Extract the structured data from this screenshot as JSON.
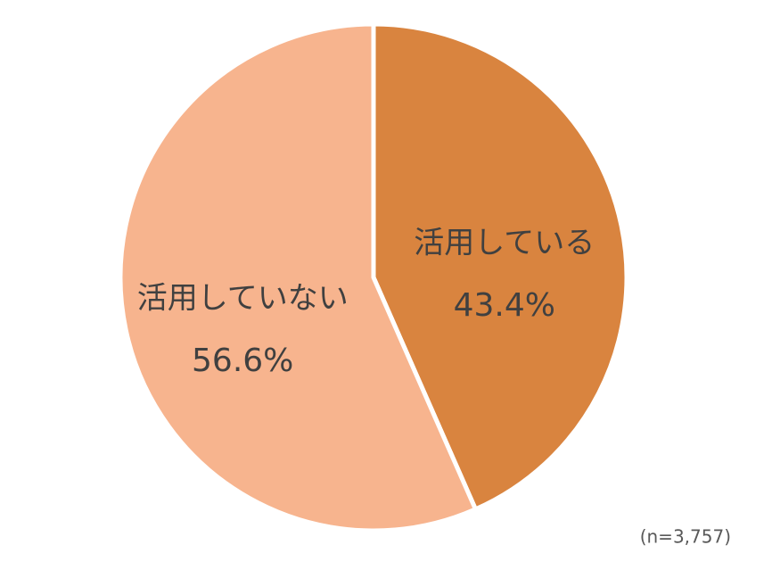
{
  "chart_data": {
    "type": "pie",
    "categories": [
      "活用している",
      "活用していない"
    ],
    "values": [
      43.4,
      56.6
    ],
    "value_labels": [
      "43.4%",
      "56.6%"
    ],
    "colors": [
      "#D9843F",
      "#F7B48E"
    ],
    "annotation": "(n=3,757)"
  }
}
